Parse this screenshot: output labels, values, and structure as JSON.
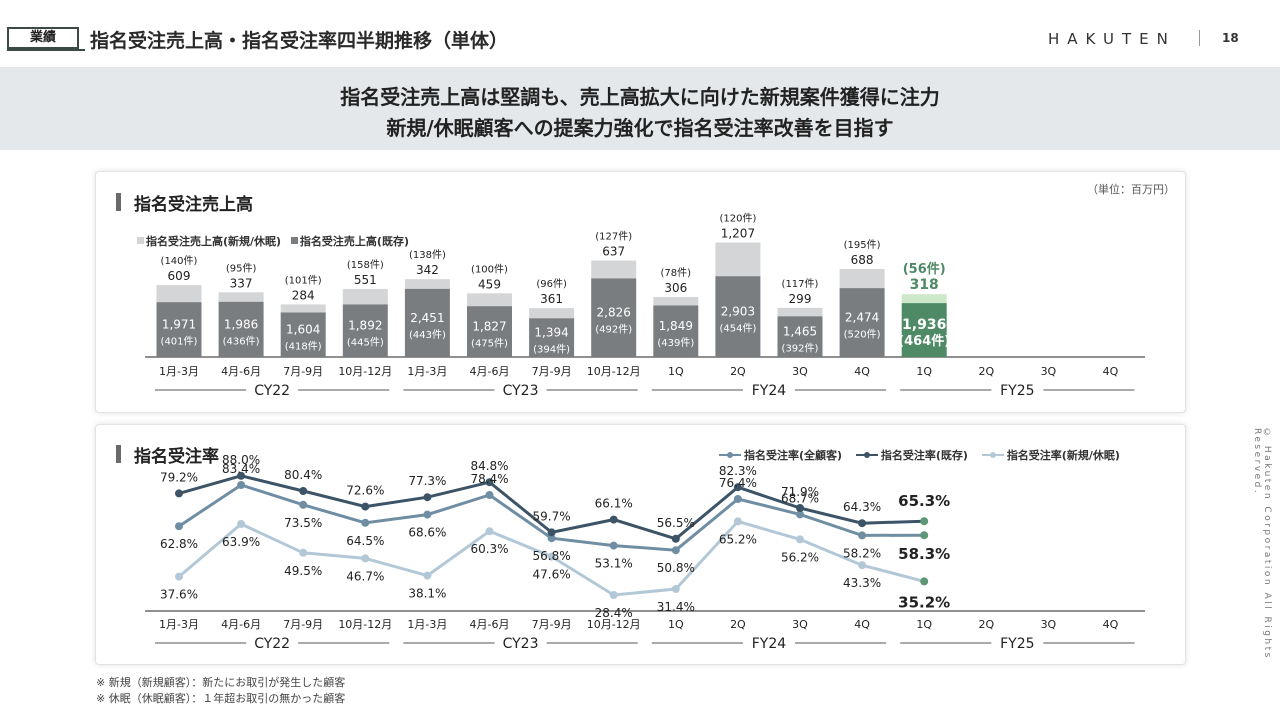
{
  "header": {
    "badge": "業績",
    "title": "指名受注売上高・指名受注率四半期推移（単体）",
    "logo": "HAKUTEN",
    "page_number": "18"
  },
  "banner": {
    "line1": "指名受注売上高は堅調も、売上高拡大に向けた新規案件獲得に注力",
    "line2": "新規/休眠顧客への提案力強化で指名受注率改善を目指す"
  },
  "colors": {
    "existing_bar": "#7a7d80",
    "new_bar": "#d3d5d7",
    "highlight_existing": "#4e8a66",
    "highlight_new": "#cde8c9",
    "highlight_text": "#4e8a66",
    "line_all": "#6f8ea3",
    "line_existing": "#3c5466",
    "line_new": "#b3c8d6",
    "fy25_marker": "#5e9778"
  },
  "quarters": [
    "1月-3月",
    "4月-6月",
    "7月-9月",
    "10月-12月",
    "1月-3月",
    "4月-6月",
    "7月-9月",
    "10月-12月",
    "1Q",
    "2Q",
    "3Q",
    "4Q",
    "1Q",
    "2Q",
    "3Q",
    "4Q"
  ],
  "groups": [
    "CY22",
    "CY23",
    "FY24",
    "FY25"
  ],
  "chart_data": [
    {
      "type": "bar",
      "title": "指名受注売上高",
      "unit_note": "（単位：百万円）",
      "categories": [
        "CY22 1月-3月",
        "CY22 4月-6月",
        "CY22 7月-9月",
        "CY22 10月-12月",
        "CY23 1月-3月",
        "CY23 4月-6月",
        "CY23 7月-9月",
        "CY23 10月-12月",
        "FY24 1Q",
        "FY24 2Q",
        "FY24 3Q",
        "FY24 4Q",
        "FY25 1Q",
        "FY25 2Q",
        "FY25 3Q",
        "FY25 4Q"
      ],
      "stacked": true,
      "series": [
        {
          "name": "指名受注売上高(既存)",
          "values": [
            1971,
            1986,
            1604,
            1892,
            2451,
            1827,
            1394,
            2826,
            1849,
            2903,
            1465,
            2474,
            1936,
            null,
            null,
            null
          ],
          "labels": [
            "1,971",
            "1,986",
            "1,604",
            "1,892",
            "2,451",
            "1,827",
            "1,394",
            "2,826",
            "1,849",
            "2,903",
            "1,465",
            "2,474",
            "1,936",
            null,
            null,
            null
          ],
          "counts": [
            "(401件)",
            "(436件)",
            "(418件)",
            "(445件)",
            "(443件)",
            "(475件)",
            "(394件)",
            "(492件)",
            "(439件)",
            "(454件)",
            "(392件)",
            "(520件)",
            "(464件)",
            null,
            null,
            null
          ]
        },
        {
          "name": "指名受注売上高(新規/休眠)",
          "values": [
            609,
            337,
            284,
            551,
            342,
            459,
            361,
            637,
            306,
            1207,
            299,
            688,
            318,
            null,
            null,
            null
          ],
          "labels": [
            "609",
            "337",
            "284",
            "551",
            "342",
            "459",
            "361",
            "637",
            "306",
            "1,207",
            "299",
            "688",
            "318",
            null,
            null,
            null
          ],
          "counts": [
            "(140件)",
            "(95件)",
            "(101件)",
            "(158件)",
            "(138件)",
            "(100件)",
            "(96件)",
            "(127件)",
            "(78件)",
            "(120件)",
            "(117件)",
            "(195件)",
            "(56件)",
            null,
            null,
            null
          ]
        }
      ],
      "ylim": [
        0,
        4200
      ],
      "legend": "top-left"
    },
    {
      "type": "line",
      "title": "指名受注率",
      "categories": [
        "CY22 1月-3月",
        "CY22 4月-6月",
        "CY22 7月-9月",
        "CY22 10月-12月",
        "CY23 1月-3月",
        "CY23 4月-6月",
        "CY23 7月-9月",
        "CY23 10月-12月",
        "FY24 1Q",
        "FY24 2Q",
        "FY24 3Q",
        "FY24 4Q",
        "FY25 1Q",
        "FY25 2Q",
        "FY25 3Q",
        "FY25 4Q"
      ],
      "series": [
        {
          "name": "指名受注率(全顧客)",
          "values": [
            62.8,
            83.4,
            73.5,
            64.5,
            68.6,
            78.4,
            56.8,
            53.1,
            50.8,
            76.4,
            68.7,
            58.2,
            58.3,
            null,
            null,
            null
          ]
        },
        {
          "name": "指名受注率(既存)",
          "values": [
            79.2,
            88.0,
            80.4,
            72.6,
            77.3,
            84.8,
            59.7,
            66.1,
            56.5,
            82.3,
            71.9,
            64.3,
            65.3,
            null,
            null,
            null
          ]
        },
        {
          "name": "指名受注率(新規/休眠)",
          "values": [
            37.6,
            63.9,
            49.5,
            46.7,
            38.1,
            60.3,
            47.6,
            28.4,
            31.4,
            65.2,
            56.2,
            43.3,
            35.2,
            null,
            null,
            null
          ]
        }
      ],
      "unit": "%",
      "ylim": [
        20,
        95
      ],
      "legend": "top-right"
    }
  ],
  "notes": [
    "※ 新規（新規顧客）：新たにお取引が発生した顧客",
    "※ 休眠（休眠顧客）：１年超お取引の無かった顧客"
  ],
  "copyright": "© Hakuten Corporation All Rights Reserved."
}
